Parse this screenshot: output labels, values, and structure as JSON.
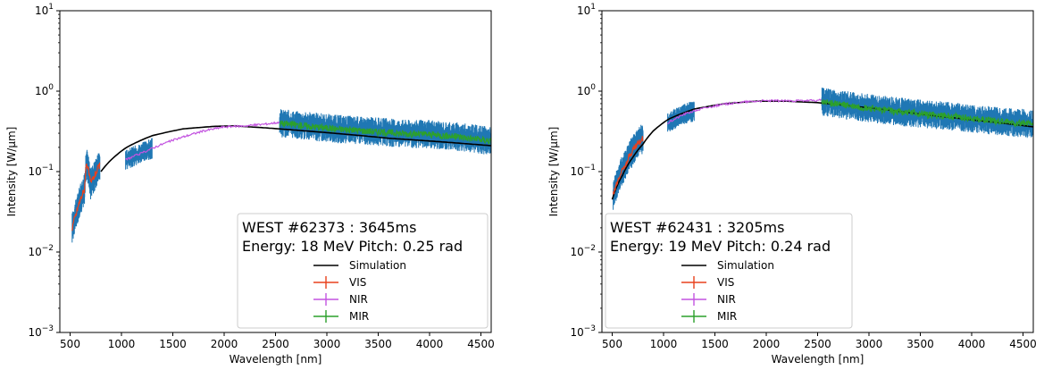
{
  "chart_data": [
    {
      "type": "line",
      "title": "",
      "xlabel": "Wavelength [nm]",
      "ylabel": "Intensity [W/μm]",
      "xlim": [
        400,
        4600
      ],
      "ylim": [
        0.001,
        10
      ],
      "yscale": "log",
      "xticks": [
        "500",
        "1000",
        "1500",
        "2000",
        "2500",
        "3000",
        "3500",
        "4000",
        "4500"
      ],
      "grid": false,
      "legend_position": "lower-right",
      "legend_title_line1": "WEST #62373 : 3645ms",
      "legend_title_line2": "Energy: 18 MeV Pitch: 0.25 rad",
      "series": [
        {
          "name": "Simulation",
          "color": "#000000",
          "x": [
            800,
            1050,
            1300,
            1600,
            1900,
            2100,
            2400,
            2800,
            3200,
            3600,
            4000,
            4300,
            4600
          ],
          "y": [
            0.1,
            0.2,
            0.28,
            0.34,
            0.365,
            0.37,
            0.35,
            0.32,
            0.29,
            0.26,
            0.24,
            0.225,
            0.21
          ]
        },
        {
          "name": "VIS",
          "color": "#e8411d",
          "x": [
            520,
            560,
            600,
            640,
            660,
            700,
            740,
            790
          ],
          "y": [
            0.02,
            0.03,
            0.045,
            0.06,
            0.13,
            0.07,
            0.09,
            0.12
          ]
        },
        {
          "name": "NIR",
          "color": "#c354e0",
          "x": [
            1040,
            1200,
            1400,
            1600,
            1800,
            2000,
            2200,
            2400,
            2540
          ],
          "y": [
            0.14,
            0.17,
            0.22,
            0.27,
            0.32,
            0.36,
            0.37,
            0.39,
            0.41
          ]
        },
        {
          "name": "MIR",
          "color": "#2ca02c",
          "x": [
            2540,
            2800,
            3100,
            3400,
            3700,
            4000,
            4300,
            4600
          ],
          "y": [
            0.4,
            0.37,
            0.34,
            0.32,
            0.3,
            0.29,
            0.27,
            0.24
          ]
        }
      ]
    },
    {
      "type": "line",
      "title": "",
      "xlabel": "Wavelength [nm]",
      "ylabel": "Intensity [W/μm]",
      "xlim": [
        400,
        4600
      ],
      "ylim": [
        0.001,
        10
      ],
      "yscale": "log",
      "xticks": [
        "500",
        "1000",
        "1500",
        "2000",
        "2500",
        "3000",
        "3500",
        "4000",
        "4500"
      ],
      "grid": false,
      "legend_position": "lower-left",
      "legend_title_line1": "WEST #62431 : 3205ms",
      "legend_title_line2": "Energy: 19 MeV Pitch: 0.24 rad",
      "series": [
        {
          "name": "Simulation",
          "color": "#000000",
          "x": [
            500,
            600,
            700,
            800,
            900,
            1050,
            1300,
            1600,
            1900,
            2200,
            2500,
            2800,
            3200,
            3600,
            4000,
            4300,
            4600
          ],
          "y": [
            0.045,
            0.09,
            0.15,
            0.22,
            0.32,
            0.45,
            0.6,
            0.7,
            0.75,
            0.75,
            0.72,
            0.66,
            0.58,
            0.5,
            0.44,
            0.4,
            0.36
          ]
        },
        {
          "name": "VIS",
          "color": "#e8411d",
          "x": [
            510,
            560,
            610,
            660,
            710,
            760,
            800
          ],
          "y": [
            0.05,
            0.08,
            0.11,
            0.15,
            0.19,
            0.23,
            0.26
          ]
        },
        {
          "name": "NIR",
          "color": "#c354e0",
          "x": [
            1040,
            1200,
            1400,
            1600,
            1800,
            2000,
            2200,
            2400,
            2540
          ],
          "y": [
            0.4,
            0.52,
            0.62,
            0.69,
            0.74,
            0.76,
            0.76,
            0.76,
            0.77
          ]
        },
        {
          "name": "MIR",
          "color": "#2ca02c",
          "x": [
            2540,
            2800,
            3100,
            3400,
            3700,
            4000,
            4300,
            4600
          ],
          "y": [
            0.74,
            0.66,
            0.59,
            0.54,
            0.5,
            0.46,
            0.42,
            0.39
          ]
        }
      ]
    }
  ]
}
